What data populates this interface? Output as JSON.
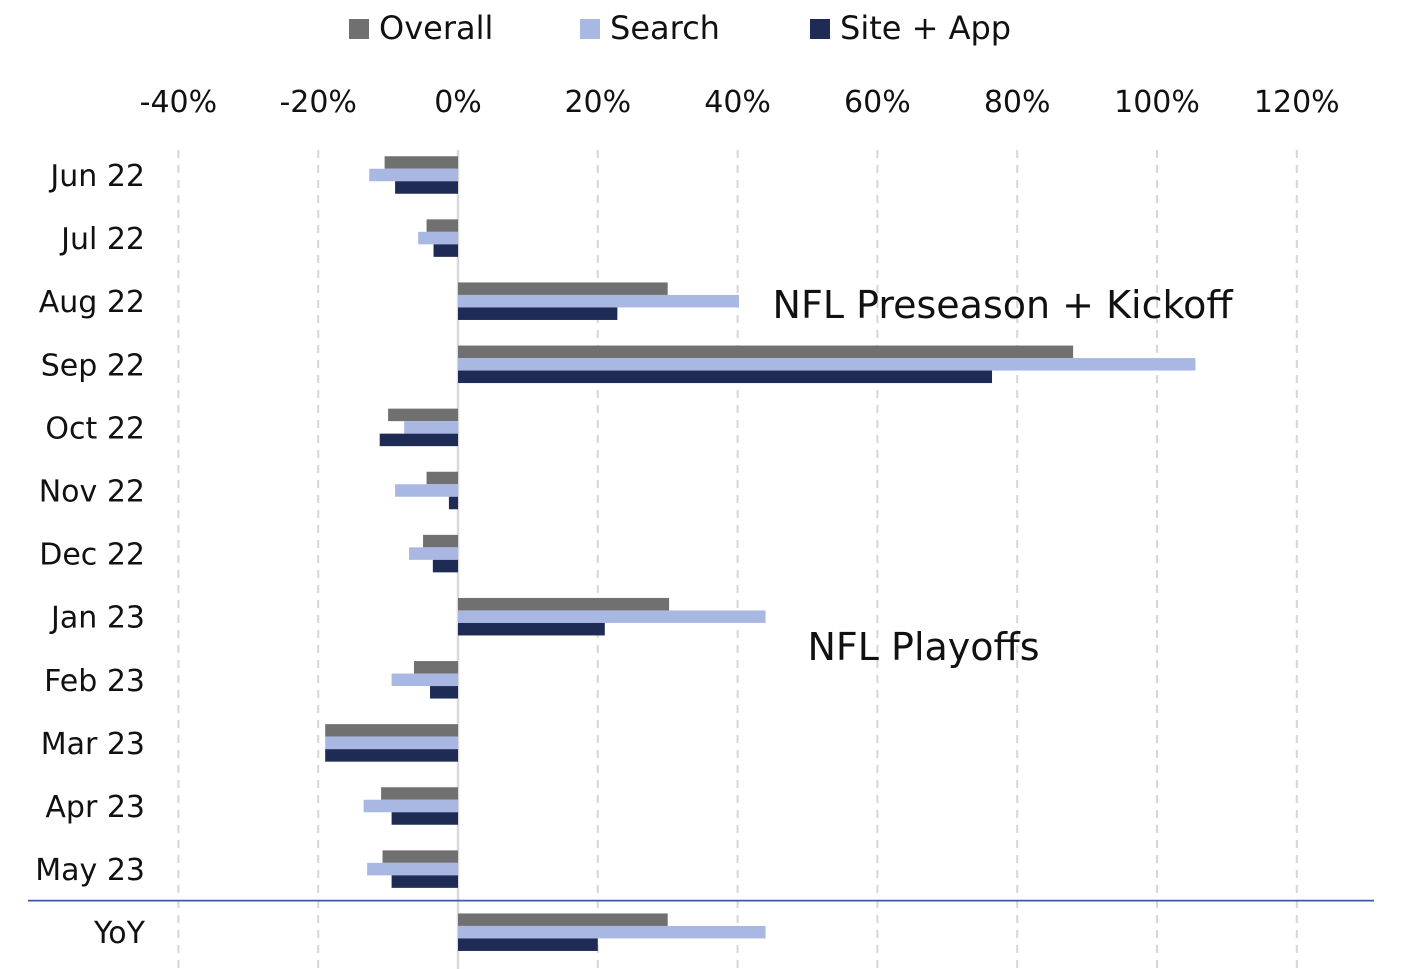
{
  "chart_data": {
    "type": "bar",
    "orientation": "horizontal",
    "categories": [
      "Jun 22",
      "Jul 22",
      "Aug 22",
      "Sep 22",
      "Oct 22",
      "Nov 22",
      "Dec 22",
      "Jan 23",
      "Feb 23",
      "Mar 23",
      "Apr 23",
      "May 23",
      "YoY"
    ],
    "series": [
      {
        "name": "Overall",
        "color": "#707070",
        "values": [
          -10.5,
          -4.5,
          30,
          88,
          -10,
          -4.5,
          -5,
          30.2,
          -6.3,
          -19,
          -11,
          -10.8,
          30
        ]
      },
      {
        "name": "Search",
        "color": "#A9B8E3",
        "values": [
          -12.7,
          -5.7,
          40.2,
          105.5,
          -7.7,
          -9,
          -7,
          44,
          -9.5,
          -19,
          -13.5,
          -13,
          44
        ]
      },
      {
        "name": "Site + App",
        "color": "#1E2B55",
        "values": [
          -9,
          -3.5,
          22.8,
          76.4,
          -11.2,
          -1.3,
          -3.6,
          21,
          -4,
          -19,
          -9.5,
          -9.5,
          20
        ]
      }
    ],
    "x_ticks": [
      "-40%",
      "-20%",
      "0%",
      "20%",
      "40%",
      "60%",
      "80%",
      "100%",
      "120%"
    ],
    "x_tick_values": [
      -40,
      -20,
      0,
      20,
      40,
      60,
      80,
      100,
      120
    ],
    "xlim": [
      -40,
      130
    ],
    "grid": "vertical-dashed",
    "legend_position": "top",
    "annotations": [
      {
        "text": "NFL Preseason + Kickoff",
        "category": "Aug 22",
        "x_value": 45
      },
      {
        "text": "NFL Playoffs",
        "category": "Feb 23",
        "x_value": 50
      }
    ],
    "separator_before": "YoY"
  }
}
